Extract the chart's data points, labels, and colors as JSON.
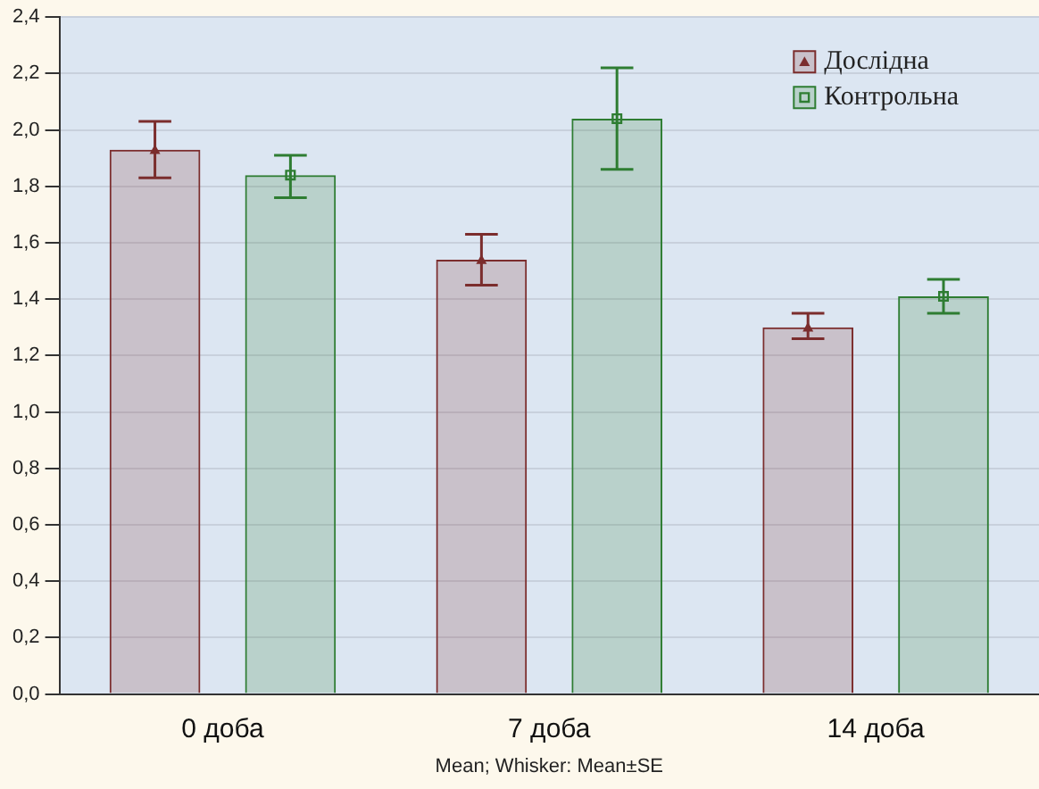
{
  "chart_data": {
    "type": "bar",
    "xlabel": "Mean; Whisker: Mean±SE",
    "categories": [
      "0 доба",
      "7 доба",
      "14 доба"
    ],
    "series": [
      {
        "name": "Дослідна",
        "color": "#7b2d2d",
        "values": [
          1.93,
          1.54,
          1.3
        ],
        "errors": [
          [
            1.83,
            2.03
          ],
          [
            1.45,
            1.63
          ],
          [
            1.26,
            1.35
          ]
        ]
      },
      {
        "name": "Контрольна",
        "color": "#2e7d32",
        "values": [
          1.84,
          2.04,
          1.41
        ],
        "errors": [
          [
            1.76,
            1.91
          ],
          [
            1.86,
            2.22
          ],
          [
            1.35,
            1.47
          ]
        ]
      },
      {
        "type": "scatter",
        "x": [
          "0 доба",
          "7 доба",
          "14 доба"
        ],
        "color": "#7b2d2d",
        "values": [
          1.93,
          1.54,
          1.3
        ],
        "marker": "triangle"
      },
      {
        "type": "scatter",
        "x": [
          "0 доба",
          "7 доба",
          "14 доба"
        ],
        "color": "#2e7d32",
        "values": [
          1.84,
          2.04,
          1.41
        ],
        "marker": "square"
      }
    ],
    "ylim": [
      0,
      2.4
    ],
    "yticks": [
      {
        "value": 0,
        "label": "0,0"
      },
      {
        "value": 0.2,
        "label": "0,2"
      },
      {
        "value": 0.4,
        "label": "0,4"
      },
      {
        "value": 0.6,
        "label": "0,6"
      },
      {
        "value": 0.8,
        "label": "0,8"
      },
      {
        "value": 1,
        "label": "1,0"
      },
      {
        "value": 1.2,
        "label": "1,2"
      },
      {
        "value": 1.4,
        "label": "1,4"
      },
      {
        "value": 1.6,
        "label": "1,6"
      },
      {
        "value": 1.8,
        "label": "1,8"
      },
      {
        "value": 2,
        "label": "2,0"
      },
      {
        "value": 2.2,
        "label": "2,2"
      },
      {
        "value": 2.4,
        "label": "2,4"
      }
    ],
    "grid": "y",
    "legend": "top right"
  }
}
